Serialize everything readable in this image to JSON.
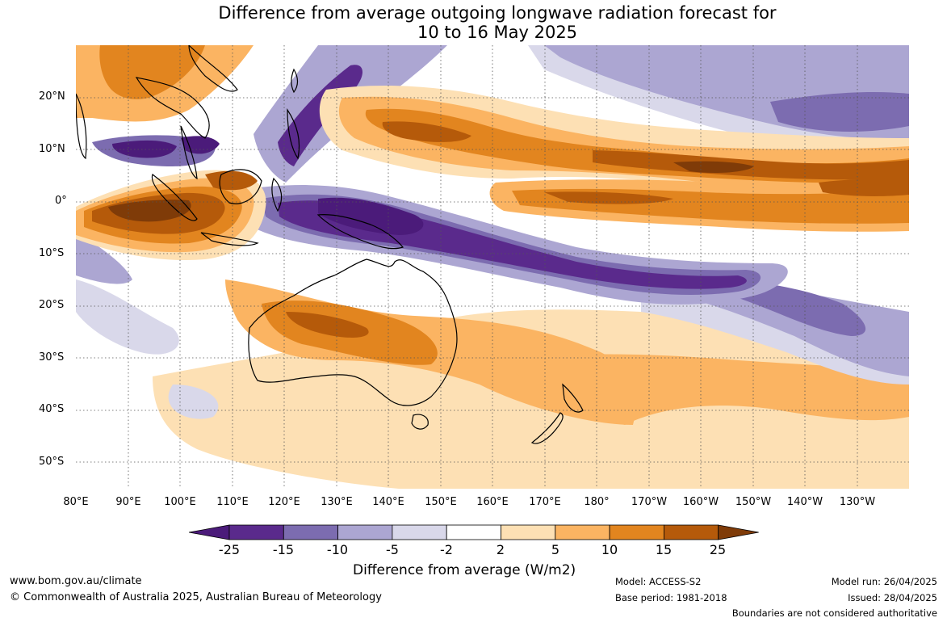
{
  "title_line1": "Difference from average outgoing longwave radiation forecast for",
  "title_line2": "10 to 16 May 2025",
  "lat_labels": [
    "20°N",
    "10°N",
    "0°",
    "10°S",
    "20°S",
    "30°S",
    "40°S",
    "50°S"
  ],
  "lon_labels": [
    "80°E",
    "90°E",
    "100°E",
    "110°E",
    "120°E",
    "130°E",
    "140°E",
    "150°E",
    "160°E",
    "170°E",
    "180°",
    "170°W",
    "160°W",
    "150°W",
    "140°W",
    "130°W"
  ],
  "colorbar": {
    "ticks": [
      "-25",
      "-15",
      "-10",
      "-5",
      "-2",
      "2",
      "5",
      "10",
      "15",
      "25"
    ],
    "colors": [
      "#4b1b7a",
      "#5a2a8c",
      "#7c6cb0",
      "#aca6d2",
      "#d9d8ea",
      "#ffffff",
      "#fde0b4",
      "#fbb462",
      "#e2851f",
      "#b55a0a",
      "#7f3b08"
    ],
    "unit_label": "Difference from average (W/m2)"
  },
  "footer": {
    "website": "www.bom.gov.au/climate",
    "copyright": "© Commonwealth of Australia 2025, Australian Bureau of Meteorology",
    "model": "Model: ACCESS-S2",
    "base_period": "Base period: 1981-2018",
    "model_run": "Model run: 26/04/2025",
    "issued": "Issued: 28/04/2025",
    "disclaimer": "Boundaries are not considered authoritative"
  }
}
